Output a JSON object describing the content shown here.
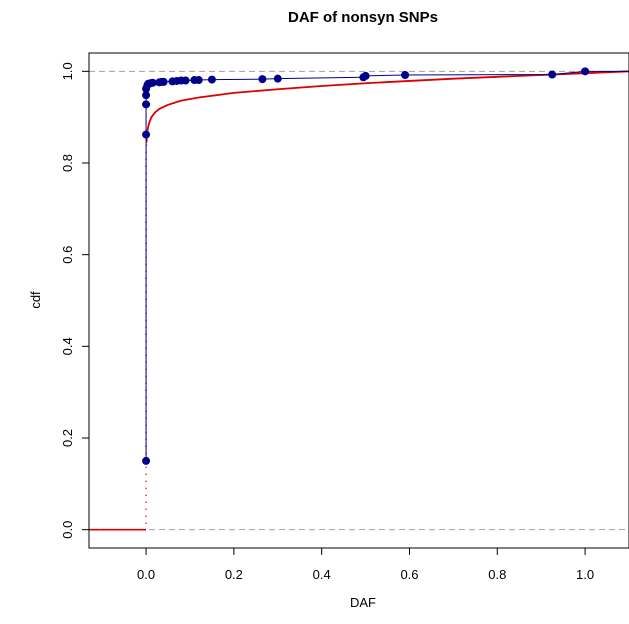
{
  "chart_data": {
    "type": "scatter",
    "title": "DAF of nonsyn SNPs",
    "xlabel": "DAF",
    "ylabel": "cdf",
    "xlim": [
      -0.13,
      1.1
    ],
    "ylim": [
      -0.04,
      1.04
    ],
    "x_ticks": [
      0.0,
      0.2,
      0.4,
      0.6,
      0.8,
      1.0
    ],
    "x_tick_labels": [
      "0.0",
      "0.2",
      "0.4",
      "0.6",
      "0.8",
      "1.0"
    ],
    "y_ticks": [
      0.0,
      0.2,
      0.4,
      0.6,
      0.8,
      1.0
    ],
    "y_tick_labels": [
      "0.0",
      "0.2",
      "0.4",
      "0.6",
      "0.8",
      "1.0"
    ],
    "grid": false,
    "legend": "none",
    "reference_lines_y": [
      0.0,
      1.0
    ],
    "reference_line_color": "#a0a0a0",
    "series": [
      {
        "style": "points-with-line",
        "color": "#00008b",
        "x": [
          0.0,
          0.0,
          0.0,
          0.0,
          0.0,
          0.003,
          0.005,
          0.01,
          0.015,
          0.03,
          0.035,
          0.04,
          0.06,
          0.07,
          0.08,
          0.09,
          0.11,
          0.12,
          0.15,
          0.265,
          0.3,
          0.495,
          0.5,
          0.59,
          0.925,
          1.0
        ],
        "y": [
          0.15,
          0.862,
          0.928,
          0.948,
          0.962,
          0.97,
          0.973,
          0.974,
          0.975,
          0.976,
          0.977,
          0.977,
          0.978,
          0.979,
          0.98,
          0.98,
          0.981,
          0.981,
          0.982,
          0.983,
          0.984,
          0.987,
          0.99,
          0.992,
          0.993,
          1.0
        ]
      },
      {
        "style": "curve",
        "color": "#dd0000",
        "x": [
          -0.13,
          0.0,
          0.0,
          0.0,
          0.0,
          0.0,
          0.0,
          0.0,
          0.001,
          0.002,
          0.003,
          0.005,
          0.008,
          0.012,
          0.02,
          0.03,
          0.05,
          0.08,
          0.12,
          0.2,
          0.3,
          0.4,
          0.5,
          0.6,
          0.7,
          0.8,
          0.9,
          0.95,
          1.0,
          1.1
        ],
        "y": [
          0.0,
          0.0,
          0.055,
          0.515,
          0.63,
          0.72,
          0.78,
          0.82,
          0.845,
          0.86,
          0.87,
          0.88,
          0.89,
          0.9,
          0.91,
          0.918,
          0.927,
          0.936,
          0.943,
          0.953,
          0.961,
          0.968,
          0.974,
          0.979,
          0.984,
          0.988,
          0.992,
          0.994,
          0.996,
          1.0
        ]
      }
    ]
  }
}
